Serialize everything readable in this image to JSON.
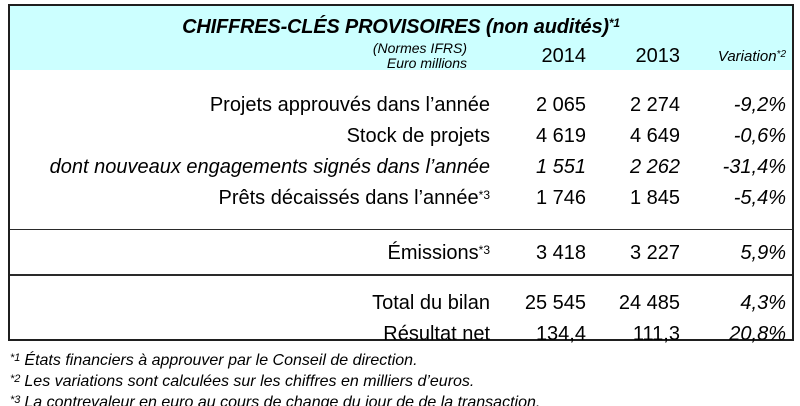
{
  "colors": {
    "header_bg": "#CCFFFF",
    "border": "#1f1f1f",
    "text": "#000000"
  },
  "header": {
    "title": "CHIFFRES-CLÉS PROVISOIRES  (non audités)",
    "title_sup": "*1",
    "norms_line1": "(Normes IFRS)",
    "norms_line2": "Euro millions",
    "col_2014": "2014",
    "col_2013": "2013",
    "col_variation": "Variation",
    "col_variation_sup": "*2"
  },
  "sections": [
    {
      "rows": [
        {
          "label": "Projets approuvés dans l’année",
          "label_sup": "",
          "y2014": "2 065",
          "y2013": "2 274",
          "variation": "-9,2%"
        },
        {
          "label": "Stock de projets",
          "label_sup": "",
          "y2014": "4 619",
          "y2013": "4 649",
          "variation": "-0,6%"
        },
        {
          "label": "dont nouveaux engagements signés dans l’année",
          "label_sup": "",
          "y2014": "1 551",
          "y2013": "2 262",
          "variation": "-31,4%"
        },
        {
          "label": "Prêts décaissés dans l’année",
          "label_sup": "*3",
          "y2014": "1 746",
          "y2013": "1 845",
          "variation": "-5,4%"
        }
      ]
    },
    {
      "rows": [
        {
          "label": "Émissions",
          "label_sup": "*3",
          "y2014": "3 418",
          "y2013": "3 227",
          "variation": "5,9%"
        }
      ]
    },
    {
      "rows": [
        {
          "label": "Total du bilan",
          "label_sup": "",
          "y2014": "25 545",
          "y2013": "24 485",
          "variation": "4,3%"
        },
        {
          "label": "Résultat net",
          "label_sup": "",
          "y2014": "134,4",
          "y2013": "111,3",
          "variation": "20,8%"
        }
      ]
    }
  ],
  "footnotes": [
    {
      "marker": "*1",
      "text": "États financiers à approuver par le Conseil de direction."
    },
    {
      "marker": "*2",
      "text": "Les variations sont calculées sur les chiffres en milliers d’euros."
    },
    {
      "marker": "*3",
      "text": "La contrevaleur en euro au cours de change du jour de de la transaction."
    }
  ]
}
